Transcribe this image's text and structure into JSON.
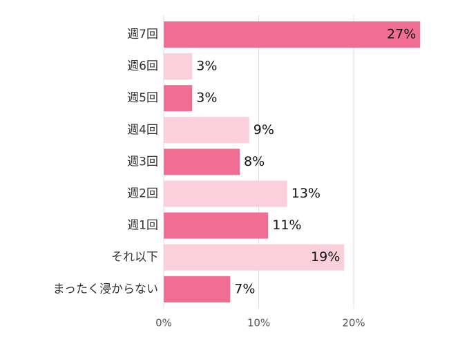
{
  "chart_data": {
    "type": "bar",
    "orientation": "horizontal",
    "categories": [
      "週7回",
      "週6回",
      "週5回",
      "週4回",
      "週3回",
      "週2回",
      "週1回",
      "それ以下",
      "まったく浸からない"
    ],
    "values": [
      27,
      3,
      3,
      9,
      8,
      13,
      11,
      19,
      7
    ],
    "data_labels": [
      "27%",
      "3%",
      "3%",
      "9%",
      "8%",
      "13%",
      "11%",
      "19%",
      "7%"
    ],
    "xlim": [
      0,
      27
    ],
    "x_ticks": [
      0,
      10,
      20
    ],
    "x_tick_labels": [
      "0%",
      "10%",
      "20%"
    ],
    "grid": true,
    "colors": {
      "dark": "#f26d93",
      "light": "#fbd0dc"
    },
    "bar_shades": [
      "dark",
      "light",
      "dark",
      "light",
      "dark",
      "light",
      "dark",
      "light",
      "dark"
    ]
  }
}
